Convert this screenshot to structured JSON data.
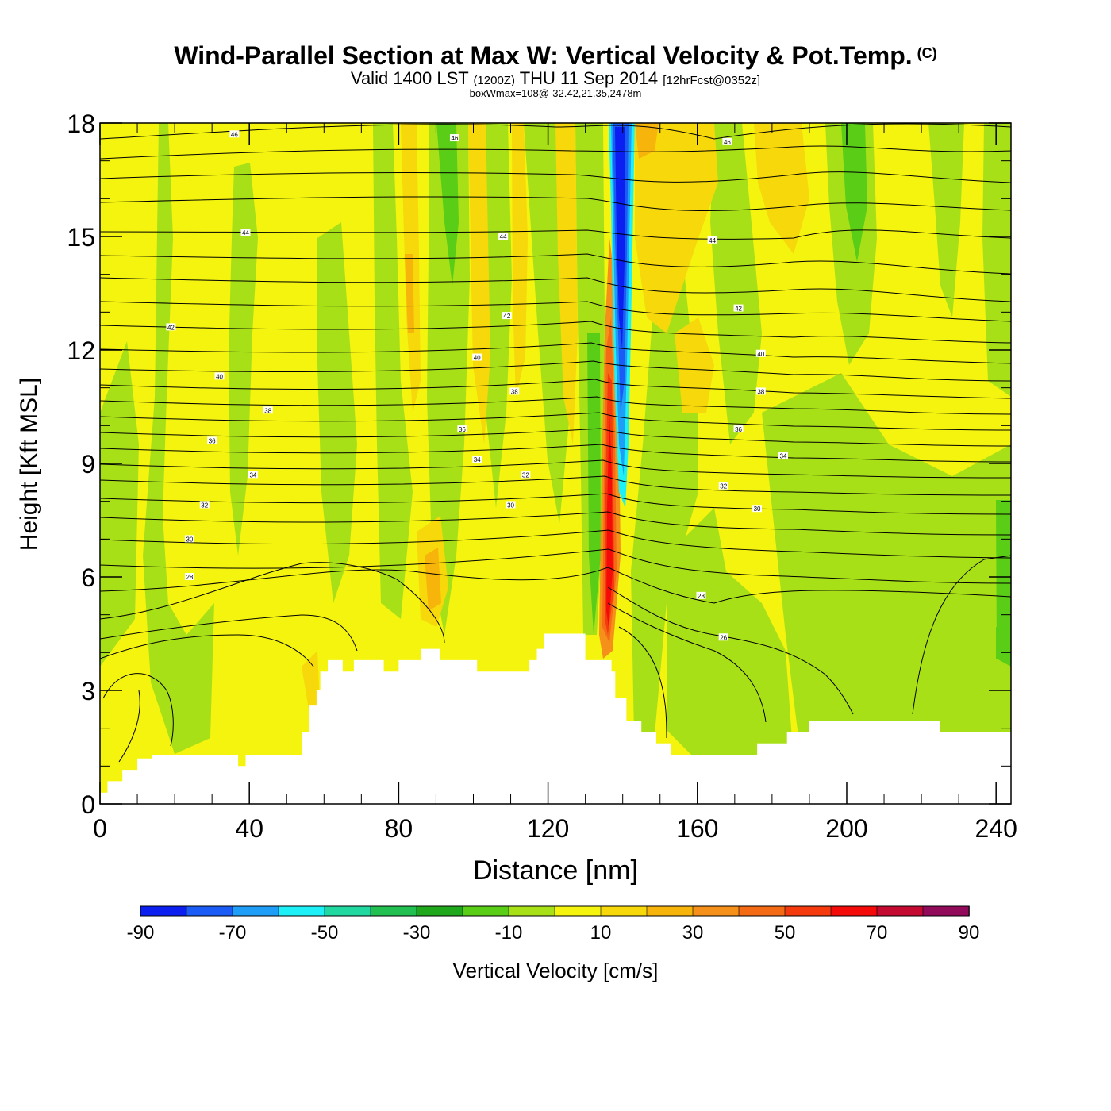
{
  "header": {
    "title": "Wind-Parallel Section at Max W: Vertical Velocity & Pot.Temp.",
    "copyright_mark": "(C)",
    "valid_prefix": "Valid 1400 LST",
    "valid_utc": "(1200Z)",
    "valid_date": "THU 11 Sep 2014",
    "forecast_info": "[12hrFcst@0352z]",
    "box_info": "boxWmax=108@-32.42,21.35,2478m"
  },
  "chart_data": {
    "type": "heatmap",
    "title": "Wind-Parallel Section at Max W: Vertical Velocity & Pot.Temp.",
    "xlabel": "Distance [nm]",
    "ylabel": "Height [Kft MSL]",
    "xlim": [
      0,
      244
    ],
    "ylim": [
      0,
      18
    ],
    "x_ticks": [
      0,
      40,
      80,
      120,
      160,
      200,
      240
    ],
    "y_ticks": [
      0,
      3,
      6,
      9,
      12,
      15,
      18
    ],
    "x_tick_labels": [
      "0",
      "40",
      "80",
      "120",
      "160",
      "200",
      "240"
    ],
    "y_tick_labels": [
      "0",
      "3",
      "6",
      "9",
      "12",
      "15",
      "18"
    ],
    "colorbar": {
      "label": "Vertical Velocity [cm/s]",
      "levels": [
        -90,
        -80,
        -70,
        -60,
        -50,
        -40,
        -30,
        -20,
        -10,
        0,
        10,
        20,
        30,
        40,
        50,
        60,
        70,
        80,
        90
      ],
      "tick_labels": [
        "-90",
        "-70",
        "-50",
        "-30",
        "-10",
        "10",
        "30",
        "50",
        "70",
        "90"
      ],
      "colors": [
        "#0a1ff0",
        "#1a5cf5",
        "#1f9ef7",
        "#1ef0f8",
        "#20d8a0",
        "#22c050",
        "#1fa81c",
        "#5acd16",
        "#a8e018",
        "#f4f40f",
        "#f7d80a",
        "#f7b40b",
        "#f5901a",
        "#f56a14",
        "#f53a0e",
        "#f50a0a",
        "#c50a32",
        "#920a5a"
      ]
    },
    "max_w_column": {
      "x": 138,
      "updraft_max_cm_s": 108,
      "updraft_top_kft": 8.5,
      "downdraft_base_kft": 9
    },
    "terrain": {
      "x": [
        0,
        2,
        2,
        6,
        6,
        10,
        10,
        14,
        14,
        37,
        37,
        39,
        39,
        54,
        54,
        56,
        56,
        58,
        58,
        59,
        59,
        61,
        61,
        65,
        65,
        68,
        68,
        76,
        76,
        80,
        80,
        86,
        86,
        91,
        91,
        101,
        101,
        115,
        115,
        117,
        117,
        119,
        119,
        121,
        121,
        130,
        130,
        137,
        137,
        138,
        138,
        141,
        141,
        145,
        145,
        149,
        149,
        153,
        153,
        158,
        158,
        168,
        168,
        176,
        176,
        184,
        184,
        190,
        190,
        196,
        196,
        225,
        225,
        244,
        244
      ],
      "kft": [
        0.3,
        0.3,
        0.6,
        0.6,
        0.9,
        0.9,
        1.2,
        1.2,
        1.3,
        1.3,
        1.0,
        1.0,
        1.3,
        1.3,
        1.9,
        1.9,
        2.6,
        2.6,
        3.0,
        3.0,
        3.5,
        3.5,
        3.8,
        3.8,
        3.5,
        3.5,
        3.8,
        3.8,
        3.5,
        3.5,
        3.8,
        3.8,
        4.1,
        4.1,
        3.8,
        3.8,
        3.5,
        3.5,
        3.8,
        3.8,
        4.1,
        4.1,
        4.5,
        4.5,
        4.5,
        4.5,
        3.8,
        3.8,
        3.5,
        3.5,
        2.8,
        2.8,
        2.2,
        2.2,
        1.9,
        1.9,
        1.6,
        1.6,
        1.3,
        1.3,
        1.3,
        1.3,
        1.3,
        1.3,
        1.6,
        1.6,
        1.9,
        1.9,
        2.2,
        2.2,
        2.2,
        2.2,
        1.9,
        1.9,
        0
      ]
    },
    "theta_contours": [
      {
        "label": "46",
        "x": 36,
        "y": 17.7
      },
      {
        "label": "46",
        "x": 95,
        "y": 17.6
      },
      {
        "label": "46",
        "x": 168,
        "y": 17.5
      },
      {
        "label": "44",
        "x": 39,
        "y": 15.1
      },
      {
        "label": "44",
        "x": 108,
        "y": 15.0
      },
      {
        "label": "44",
        "x": 164,
        "y": 14.9
      },
      {
        "label": "42",
        "x": 19,
        "y": 12.6
      },
      {
        "label": "42",
        "x": 109,
        "y": 12.9
      },
      {
        "label": "42",
        "x": 171,
        "y": 13.1
      },
      {
        "label": "40",
        "x": 32,
        "y": 11.3
      },
      {
        "label": "40",
        "x": 101,
        "y": 11.8
      },
      {
        "label": "40",
        "x": 177,
        "y": 11.9
      },
      {
        "label": "38",
        "x": 45,
        "y": 10.4
      },
      {
        "label": "38",
        "x": 111,
        "y": 10.9
      },
      {
        "label": "38",
        "x": 177,
        "y": 10.9
      },
      {
        "label": "36",
        "x": 30,
        "y": 9.6
      },
      {
        "label": "36",
        "x": 97,
        "y": 9.9
      },
      {
        "label": "36",
        "x": 171,
        "y": 9.9
      },
      {
        "label": "34",
        "x": 41,
        "y": 8.7
      },
      {
        "label": "34",
        "x": 101,
        "y": 9.1
      },
      {
        "label": "34",
        "x": 183,
        "y": 9.2
      },
      {
        "label": "32",
        "x": 28,
        "y": 7.9
      },
      {
        "label": "32",
        "x": 114,
        "y": 8.7
      },
      {
        "label": "32",
        "x": 167,
        "y": 8.4
      },
      {
        "label": "30",
        "x": 24,
        "y": 7.0
      },
      {
        "label": "30",
        "x": 110,
        "y": 7.9
      },
      {
        "label": "30",
        "x": 176,
        "y": 7.8
      },
      {
        "label": "28",
        "x": 24,
        "y": 6.0
      },
      {
        "label": "28",
        "x": 161,
        "y": 5.5
      },
      {
        "label": "26",
        "x": 167,
        "y": 4.4
      }
    ]
  }
}
